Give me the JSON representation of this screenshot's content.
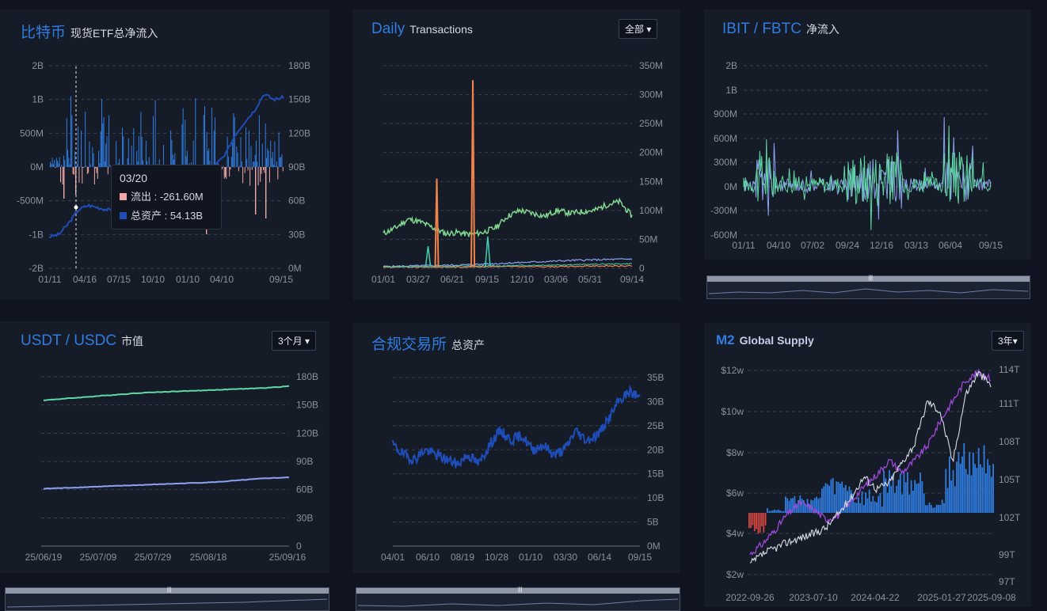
{
  "panels": {
    "btc_etf": {
      "title": "比特币",
      "subtitle": "现货ETF总净流入"
    },
    "daily": {
      "title": "Daily",
      "subtitle": "Transactions",
      "button": "全部"
    },
    "ibit": {
      "title": "IBIT / FBTC",
      "subtitle": "净流入"
    },
    "stable": {
      "title": "USDT / USDC",
      "subtitle": "市值",
      "button": "3个月"
    },
    "exchange": {
      "title": "合规交易所",
      "subtitle": "总资产"
    },
    "m2": {
      "title": "M2",
      "subtitle": "Global Supply",
      "button": "3年"
    }
  },
  "tooltip": {
    "date": "03/20",
    "outflow_label": "流出 : -261.60M",
    "assets_label": "总资产 : 54.13B"
  },
  "colors": {
    "blue": "#2f7de1",
    "navy": "#1f4db8",
    "pink": "#f0a8a8",
    "green": "#7fd88e",
    "orange": "#f0834a",
    "teal": "#3fd0b0",
    "mint": "#5fd9a3",
    "periwinkle": "#8aa2f0",
    "purple": "#9b4ad8",
    "red": "#d0453f"
  },
  "chart_data": [
    {
      "id": "btc_etf",
      "type": "bar",
      "x_ticks": [
        "01/11",
        "04/16",
        "07/15",
        "10/10",
        "01/10",
        "04/10",
        "09/15"
      ],
      "y_left": {
        "ticks": [
          "2B",
          "1B",
          "500M",
          "0M",
          "-500M",
          "-1B",
          "-2B"
        ],
        "range": [
          -2,
          2
        ],
        "unit": "B"
      },
      "y_right": {
        "ticks": [
          "180B",
          "150B",
          "120B",
          "90B",
          "60B",
          "30B",
          "0M"
        ],
        "range": [
          0,
          180
        ],
        "unit": "B"
      },
      "series": [
        {
          "name": "流出",
          "type": "bar",
          "color": "#f0a8a8"
        },
        {
          "name": "总资产",
          "type": "line",
          "color": "#1f4db8",
          "y_axis": "right",
          "values": [
            28,
            30,
            40,
            52,
            56,
            54,
            52,
            50,
            52,
            58,
            62,
            62,
            60,
            62,
            80,
            90,
            85,
            92,
            100,
            118,
            130,
            140,
            155,
            150,
            152
          ]
        },
        {
          "name": "流入",
          "type": "bar",
          "color": "#2f7de1"
        }
      ],
      "highlight": {
        "date": "03/20",
        "outflow": -261.6,
        "outflow_unit": "M",
        "total_assets": 54.13,
        "total_assets_unit": "B"
      }
    },
    {
      "id": "daily",
      "type": "line",
      "x_ticks": [
        "01/01",
        "03/27",
        "06/21",
        "09/15",
        "12/10",
        "03/06",
        "05/31",
        "09/14"
      ],
      "y_right": {
        "ticks": [
          "350M",
          "300M",
          "250M",
          "200M",
          "150M",
          "100M",
          "50M",
          "0"
        ],
        "range": [
          0,
          350
        ],
        "unit": "M"
      },
      "series": [
        {
          "color": "#7fd88e",
          "values": [
            60,
            70,
            85,
            80,
            70,
            60,
            62,
            58,
            62,
            70,
            90,
            100,
            95,
            90,
            100,
            95,
            98,
            100,
            110,
            115,
            90
          ]
        },
        {
          "color": "#f0834a",
          "spikes": [
            {
              "pos": 0.215,
              "value": 155
            },
            {
              "pos": 0.36,
              "value": 325
            }
          ]
        },
        {
          "color": "#3fd0b0",
          "spikes": [
            {
              "pos": 0.18,
              "value": 38
            },
            {
              "pos": 0.42,
              "value": 55
            }
          ]
        },
        {
          "color": "#8aa2f0",
          "values": [
            3,
            4,
            5,
            6,
            8,
            10,
            12,
            14,
            15,
            16
          ]
        }
      ]
    },
    {
      "id": "ibit",
      "type": "bar",
      "x_ticks": [
        "01/11",
        "04/10",
        "07/02",
        "09/24",
        "12/16",
        "03/13",
        "06/04",
        "09/15"
      ],
      "y_left": {
        "ticks": [
          "2B",
          "1B",
          "900M",
          "600M",
          "300M",
          "0M",
          "-300M",
          "-600M"
        ],
        "unit": "B"
      },
      "series": [
        {
          "name": "IBIT",
          "color": "#5fd9a3"
        },
        {
          "name": "FBTC",
          "color": "#8aa2f0"
        }
      ]
    },
    {
      "id": "stable",
      "type": "line",
      "x_ticks": [
        "25/06/19",
        "25/07/09",
        "25/07/29",
        "25/08/18",
        "25/09/16"
      ],
      "y_right": {
        "ticks": [
          "180B",
          "150B",
          "120B",
          "90B",
          "60B",
          "30B",
          "0"
        ],
        "range": [
          0,
          180
        ],
        "unit": "B"
      },
      "series": [
        {
          "name": "USDT",
          "color": "#5fd9a3",
          "values": [
            155,
            157,
            159,
            161,
            163,
            164,
            165,
            166,
            167,
            168,
            170
          ]
        },
        {
          "name": "USDC",
          "color": "#8aa2f0",
          "values": [
            61,
            62,
            63,
            64,
            65,
            66,
            67,
            68,
            70,
            72,
            73
          ]
        }
      ]
    },
    {
      "id": "exchange",
      "type": "line",
      "x_ticks": [
        "04/01",
        "06/10",
        "08/19",
        "10/28",
        "01/10",
        "03/30",
        "06/14",
        "09/15"
      ],
      "y_right": {
        "ticks": [
          "35B",
          "30B",
          "25B",
          "20B",
          "15B",
          "10B",
          "5B",
          "0M"
        ],
        "range": [
          0,
          35
        ],
        "unit": "B"
      },
      "series": [
        {
          "color": "#1f4db8",
          "values": [
            21,
            19,
            18,
            20,
            19,
            18,
            17,
            19,
            17,
            21,
            24,
            22,
            23,
            20,
            21,
            19,
            20,
            24,
            22,
            23,
            26,
            30,
            32,
            31
          ]
        }
      ]
    },
    {
      "id": "m2",
      "type": "bar",
      "x_ticks": [
        "2022-09-26",
        "2023-07-10",
        "2024-04-22",
        "2025-01-27",
        "2025-09-08"
      ],
      "y_left": {
        "ticks": [
          "$12w",
          "$10w",
          "$8w",
          "$6w",
          "$4w",
          "$2w"
        ]
      },
      "y_right": {
        "ticks": [
          "114T",
          "111T",
          "108T",
          "105T",
          "102T",
          "99T",
          "97T"
        ]
      },
      "series": [
        {
          "type": "bar",
          "color": "#2f7de1"
        },
        {
          "type": "bar",
          "color": "#d0453f"
        },
        {
          "type": "line",
          "color": "#9b4ad8",
          "values": [
            3.0,
            3.5,
            4.2,
            5.0,
            5.5,
            5.2,
            4.7,
            4.9,
            5.6,
            6.3,
            6.9,
            7.6,
            7.0,
            7.6,
            8.3,
            9.5,
            10.5,
            11.5,
            11.9,
            11.6
          ]
        },
        {
          "type": "line",
          "color": "#d8dce6",
          "values": [
            2.5,
            3.0,
            3.3,
            3.6,
            3.8,
            4.0,
            4.3,
            5.0,
            5.8,
            6.8,
            6.2,
            6.5,
            7.5,
            8.4,
            10.5,
            10.0,
            7.5,
            10.8,
            11.9,
            11.3
          ]
        }
      ]
    }
  ]
}
